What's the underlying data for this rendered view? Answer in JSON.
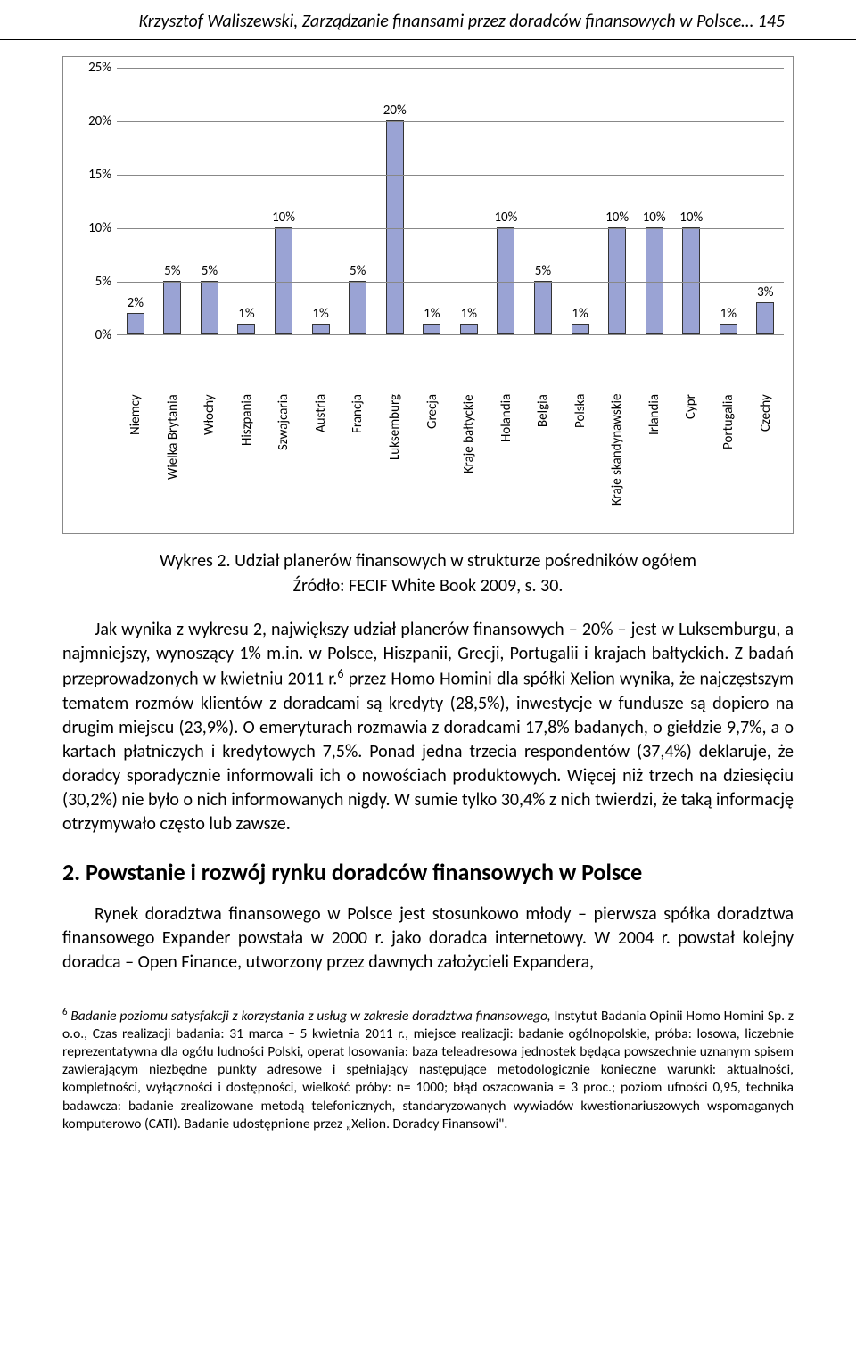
{
  "header": {
    "text": "Krzysztof Waliszewski, Zarządzanie finansami przez doradców finansowych w Polsce… 145"
  },
  "chart": {
    "type": "bar",
    "ylim": [
      0,
      25
    ],
    "ytick_step": 5,
    "bar_fill": "#9aa3d4",
    "bar_stroke": "#333333",
    "grid_color": "#888888",
    "background": "#ffffff",
    "label_fontsize": 15,
    "bars": [
      {
        "cat": "Niemcy",
        "val": 2,
        "label": "2%"
      },
      {
        "cat": "Wielka Brytania",
        "val": 5,
        "label": "5%"
      },
      {
        "cat": "Włochy",
        "val": 5,
        "label": "5%"
      },
      {
        "cat": "Hiszpania",
        "val": 1,
        "label": "1%"
      },
      {
        "cat": "Szwajcaria",
        "val": 10,
        "label": "10%"
      },
      {
        "cat": "Austria",
        "val": 1,
        "label": "1%"
      },
      {
        "cat": "Francja",
        "val": 5,
        "label": "5%"
      },
      {
        "cat": "Luksemburg",
        "val": 20,
        "label": "20%"
      },
      {
        "cat": "Grecja",
        "val": 1,
        "label": "1%"
      },
      {
        "cat": "Kraje bałtyckie",
        "val": 1,
        "label": "1%"
      },
      {
        "cat": "Holandia",
        "val": 10,
        "label": "10%"
      },
      {
        "cat": "Belgia",
        "val": 5,
        "label": "5%"
      },
      {
        "cat": "Polska",
        "val": 1,
        "label": "1%"
      },
      {
        "cat": "Kraje skandynawskie",
        "val": 10,
        "label": "10%"
      },
      {
        "cat": "Irlandia",
        "val": 10,
        "label": "10%"
      },
      {
        "cat": "Cypr",
        "val": 10,
        "label": "10%"
      },
      {
        "cat": "Portugalia",
        "val": 1,
        "label": "1%"
      },
      {
        "cat": "Czechy",
        "val": 3,
        "label": "3%"
      }
    ],
    "yticks": [
      "0%",
      "5%",
      "10%",
      "15%",
      "20%",
      "25%"
    ]
  },
  "caption": "Wykres 2. Udział planerów finansowych w strukturze pośredników ogółem",
  "source": "Źródło: FECIF White Book 2009, s. 30.",
  "para1": "Jak wynika z wykresu 2, największy udział planerów finansowych – 20% – jest w Luksemburgu, a najmniejszy, wynoszący 1% m.in. w Polsce, Hiszpanii, Grecji, Portugalii i krajach bałtyckich. Z badań przeprowadzonych w kwietniu 2011 r.",
  "para1_sup": "6",
  "para1_cont": " przez Homo Homini dla spółki Xelion wynika, że najczęstszym tematem rozmów klientów z doradcami są kredyty (28,5%), inwestycje w fundusze są dopiero na drugim miejscu (23,9%). O emeryturach rozmawia z doradcami 17,8% badanych, o giełdzie 9,7%, a o kartach płatniczych i kredytowych 7,5%. Ponad jedna trzecia respondentów (37,4%) deklaruje, że doradcy sporadycznie informowali ich o nowościach produktowych. Więcej niż trzech na dziesięciu (30,2%) nie było o nich informowanych nigdy. W sumie tylko 30,4% z nich twierdzi, że taką informację otrzymywało często lub zawsze.",
  "heading2": "2. Powstanie i rozwój rynku doradców finansowych w Polsce",
  "para2": "Rynek doradztwa finansowego w Polsce jest stosunkowo młody – pierwsza spółka doradztwa finansowego Expander powstała w 2000 r. jako doradca internetowy. W 2004 r. powstał kolejny doradca – Open Finance, utworzony przez dawnych założycieli Expandera,",
  "footnote_marker": "6",
  "footnote_italic": " Badanie poziomu satysfakcji z korzystania z usług w zakresie doradztwa finansowego, ",
  "footnote_rest": "Instytut Badania Opinii Homo Homini Sp. z o.o., Czas realizacji badania: 31 marca – 5 kwietnia 2011 r., miejsce realizacji: badanie ogólnopolskie, próba: losowa, liczebnie reprezentatywna dla ogółu ludności Polski, operat losowania: baza teleadresowa jednostek będąca powszechnie uznanym spisem zawierającym niezbędne punkty adresowe i spełniający następujące metodologicznie konieczne warunki: aktualności, kompletności, wyłączności i dostępności, wielkość próby: n= 1000; błąd oszacowania = 3 proc.; poziom ufności 0,95, technika badawcza: badanie zrealizowane metodą telefonicznych, standaryzowanych wywiadów kwestionariuszowych wspomaganych komputerowo (CATI). Badanie udostępnione przez „Xelion. Doradcy Finansowi\"."
}
